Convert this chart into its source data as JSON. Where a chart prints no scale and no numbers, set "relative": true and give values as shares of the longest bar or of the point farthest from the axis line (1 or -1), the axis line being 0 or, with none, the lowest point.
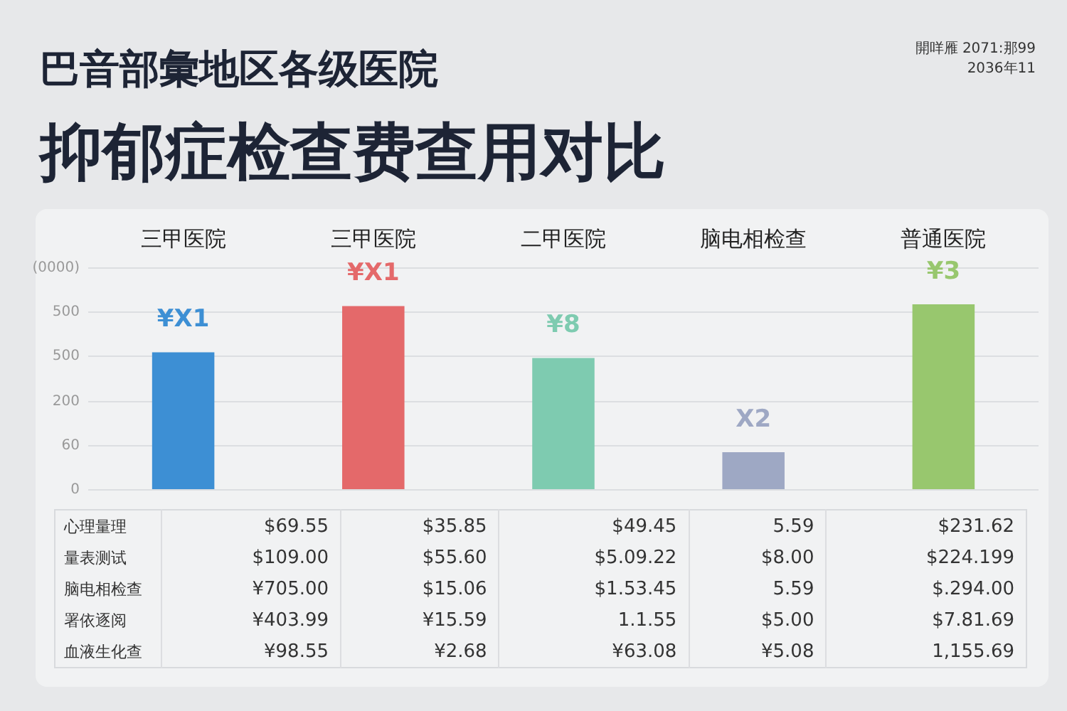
{
  "chart_data": {
    "type": "bar",
    "title": "巴音部彙地区各级医院",
    "subtitle": "抑郁症检查费查用对比",
    "categories": [
      "三甲医院",
      "三甲医院",
      "二甲医院",
      "脑电相检查",
      "普通医院"
    ],
    "values": [
      0.74,
      0.99,
      0.71,
      0.2,
      1
    ],
    "relative": true,
    "colors": [
      "#3d8fd4",
      "#e4696a",
      "#7ecbb0",
      "#9ea8c4",
      "#98c76e"
    ],
    "annotations": [
      "開咩雁 2071:那99",
      "2036年11",
      "¥X1",
      "¥X1",
      "¥8",
      "X2",
      "¥3",
      "(0000)",
      "500",
      "500",
      "200",
      "60",
      "0",
      "心理量理",
      "$69.55",
      "$35.85",
      "$49.45",
      "5.59",
      "$231.62",
      "量表测试",
      "$109.00",
      "$55.60",
      "$5.09.22",
      "$8.00",
      "$224.199",
      "脑电相检查",
      "¥705.00",
      "$15.06",
      "$1.53.45",
      "5.59",
      "$.294.00",
      "署依逐阅",
      "¥403.99",
      "¥15.59",
      "1.1.55",
      "$5.00",
      "$7.81.69",
      "血液生化查",
      "¥98.55",
      "¥2.68",
      "¥63.08",
      "¥5.08",
      "1,155.69"
    ]
  }
}
